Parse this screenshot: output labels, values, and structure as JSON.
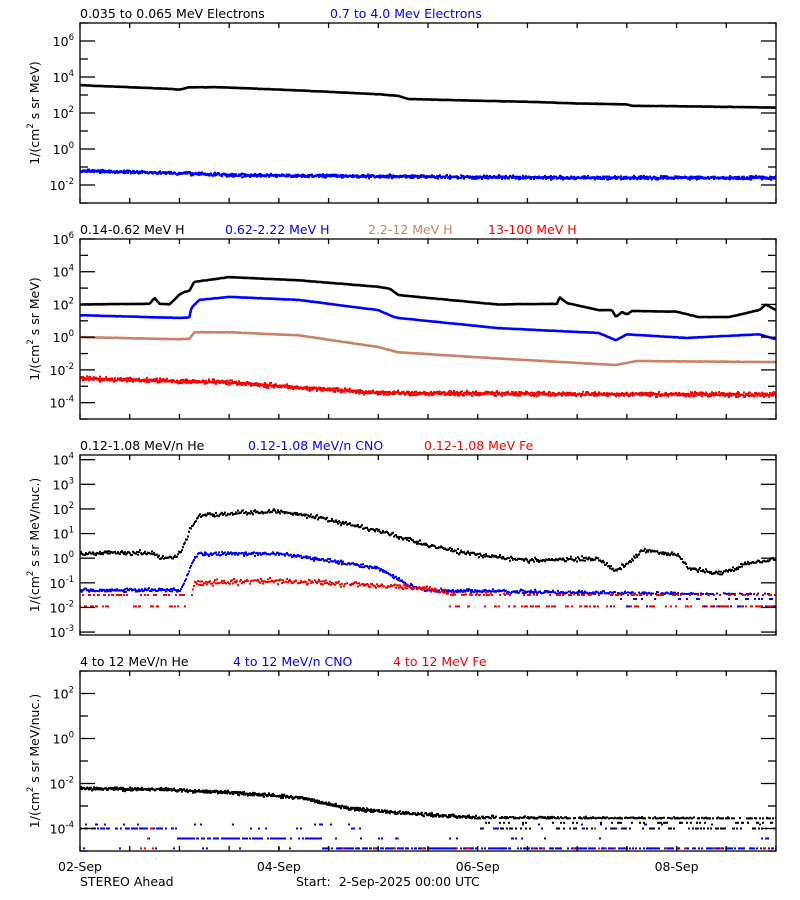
{
  "chart_data": [
    {
      "type": "scatter",
      "xlim": [
        "2025-09-02 00:00",
        "2025-09-09 00:00"
      ],
      "ylim": [
        0.001,
        10000000
      ],
      "yscale": "log",
      "ylabel": {
        "pre": "1/(cm",
        "sup": "2",
        "post": " s sr MeV)"
      },
      "ytick_labels": [
        "10^6",
        "10^4",
        "10^2",
        "10^0",
        "10^-2"
      ],
      "grid": false,
      "series": [
        {
          "name": "0.035 to 0.065 MeV Electrons",
          "color": "#000000",
          "style": "line",
          "points": [
            [
              "2025-09-02 00:00",
              3500
            ],
            [
              "2025-09-02 21:36",
              2200
            ],
            [
              "2025-09-03 00:00",
              2000
            ],
            [
              "2025-09-03 02:24",
              2700
            ],
            [
              "2025-09-03 09:36",
              2700
            ],
            [
              "2025-09-04 00:00",
              2000
            ],
            [
              "2025-09-04 12:00",
              1500
            ],
            [
              "2025-09-05 00:00",
              1100
            ],
            [
              "2025-09-05 04:48",
              900
            ],
            [
              "2025-09-05 07:12",
              600
            ],
            [
              "2025-09-06 00:00",
              480
            ],
            [
              "2025-09-06 12:00",
              420
            ],
            [
              "2025-09-07 00:00",
              340
            ],
            [
              "2025-09-07 12:00",
              300
            ],
            [
              "2025-09-07 13:12",
              250
            ],
            [
              "2025-09-08 00:00",
              240
            ],
            [
              "2025-09-09 00:00",
              200
            ]
          ]
        },
        {
          "name": "0.7 to 4.0 Mev Electrons",
          "color": "#0000ff",
          "style": "points",
          "points": [
            [
              "2025-09-02 00:00",
              0.06
            ],
            [
              "2025-09-03 00:00",
              0.045
            ],
            [
              "2025-09-03 12:00",
              0.035
            ],
            [
              "2025-09-05 00:00",
              0.03
            ],
            [
              "2025-09-07 00:00",
              0.025
            ],
            [
              "2025-09-09 00:00",
              0.025
            ]
          ]
        }
      ]
    },
    {
      "type": "scatter",
      "xlim": [
        "2025-09-02 00:00",
        "2025-09-09 00:00"
      ],
      "ylim": [
        1e-05,
        1000000
      ],
      "yscale": "log",
      "ylabel": {
        "pre": "1/(cm",
        "sup": "2",
        "post": " s sr MeV)"
      },
      "ytick_labels": [
        "10^6",
        "10^4",
        "10^2",
        "10^0",
        "10^-2",
        "10^-4"
      ],
      "grid": false,
      "series": [
        {
          "name": "0.14-0.62 MeV H",
          "color": "#000000",
          "style": "line",
          "points": [
            [
              "2025-09-02 00:00",
              100
            ],
            [
              "2025-09-02 16:48",
              110
            ],
            [
              "2025-09-02 18:00",
              250
            ],
            [
              "2025-09-02 19:12",
              110
            ],
            [
              "2025-09-02 21:36",
              100
            ],
            [
              "2025-09-03 00:00",
              400
            ],
            [
              "2025-09-03 01:12",
              580
            ],
            [
              "2025-09-03 02:24",
              700
            ],
            [
              "2025-09-03 03:36",
              2400
            ],
            [
              "2025-09-03 12:00",
              4700
            ],
            [
              "2025-09-04 04:48",
              3000
            ],
            [
              "2025-09-05 00:00",
              1200
            ],
            [
              "2025-09-05 02:52",
              900
            ],
            [
              "2025-09-05 04:48",
              380
            ],
            [
              "2025-09-05 12:00",
              250
            ],
            [
              "2025-09-06 04:48",
              100
            ],
            [
              "2025-09-06 19:12",
              110
            ],
            [
              "2025-09-06 19:41",
              280
            ],
            [
              "2025-09-06 21:36",
              120
            ],
            [
              "2025-09-07 05:17",
              45
            ],
            [
              "2025-09-07 08:24",
              45
            ],
            [
              "2025-09-07 09:22",
              17
            ],
            [
              "2025-09-07 10:48",
              35
            ],
            [
              "2025-09-07 12:00",
              25
            ],
            [
              "2025-09-07 13:12",
              40
            ],
            [
              "2025-09-08 00:00",
              36
            ],
            [
              "2025-09-08 05:17",
              17
            ],
            [
              "2025-09-08 12:43",
              17
            ],
            [
              "2025-09-08 19:55",
              45
            ],
            [
              "2025-09-08 21:36",
              100
            ],
            [
              "2025-09-09 00:00",
              45
            ]
          ]
        },
        {
          "name": "0.62-2.22 MeV H",
          "color": "#0000ff",
          "style": "line",
          "points": [
            [
              "2025-09-02 00:00",
              22
            ],
            [
              "2025-09-03 00:00",
              15
            ],
            [
              "2025-09-03 02:24",
              16
            ],
            [
              "2025-09-03 02:52",
              60
            ],
            [
              "2025-09-03 04:48",
              190
            ],
            [
              "2025-09-03 12:00",
              290
            ],
            [
              "2025-09-04 04:48",
              190
            ],
            [
              "2025-09-05 00:00",
              45
            ],
            [
              "2025-09-05 03:50",
              17
            ],
            [
              "2025-09-05 04:48",
              15
            ],
            [
              "2025-09-06 04:48",
              3.6
            ],
            [
              "2025-09-07 05:17",
              1.8
            ],
            [
              "2025-09-07 09:22",
              0.65
            ],
            [
              "2025-09-07 12:00",
              1.5
            ],
            [
              "2025-09-08 02:24",
              0.9
            ],
            [
              "2025-09-08 19:55",
              1.5
            ],
            [
              "2025-09-09 00:00",
              0.75
            ]
          ]
        },
        {
          "name": "2.2-12 MeV H",
          "color": "#c98268",
          "style": "line",
          "points": [
            [
              "2025-09-02 00:00",
              1.0
            ],
            [
              "2025-09-03 00:00",
              0.75
            ],
            [
              "2025-09-03 02:24",
              0.8
            ],
            [
              "2025-09-03 03:36",
              2
            ],
            [
              "2025-09-03 12:00",
              2
            ],
            [
              "2025-09-04 04:48",
              1.3
            ],
            [
              "2025-09-05 00:00",
              0.25
            ],
            [
              "2025-09-05 04:48",
              0.12
            ],
            [
              "2025-09-06 04:48",
              0.05
            ],
            [
              "2025-09-07 09:22",
              0.02
            ],
            [
              "2025-09-07 14:24",
              0.035
            ],
            [
              "2025-09-09 00:00",
              0.03
            ]
          ]
        },
        {
          "name": "13-100 MeV H",
          "color": "#ff0000",
          "style": "points",
          "floor_levels": [
            0.0001,
            5e-05
          ],
          "points": [
            [
              "2025-09-02 00:00",
              0.003
            ],
            [
              "2025-09-03 12:00",
              0.0017
            ],
            [
              "2025-09-04 04:48",
              0.00085
            ],
            [
              "2025-09-05 00:00",
              0.0004
            ],
            [
              "2025-09-06 04:48",
              0.00035
            ],
            [
              "2025-09-09 00:00",
              0.0003
            ]
          ]
        }
      ]
    },
    {
      "type": "scatter",
      "xlim": [
        "2025-09-02 00:00",
        "2025-09-09 00:00"
      ],
      "ylim": [
        0.00076,
        15500
      ],
      "yscale": "log",
      "ylabel": {
        "pre": "1/(cm",
        "sup": "2",
        "post": " s sr MeV/nuc.)"
      },
      "ytick_labels": [
        "10^4",
        "10^3",
        "10^2",
        "10^1",
        "10^0",
        "10^-1",
        "10^-2",
        "10^-3"
      ],
      "grid": false,
      "series": [
        {
          "name": "0.12-1.08 MeV/n He",
          "color": "#000000",
          "style": "points",
          "points": [
            [
              "2025-09-02 00:00",
              1.5
            ],
            [
              "2025-09-02 18:00",
              1.7
            ],
            [
              "2025-09-02 19:12",
              1.0
            ],
            [
              "2025-09-02 22:48",
              1.0
            ],
            [
              "2025-09-03 01:12",
              3.3
            ],
            [
              "2025-09-03 02:24",
              13
            ],
            [
              "2025-09-03 04:48",
              55
            ],
            [
              "2025-09-03 16:48",
              70
            ],
            [
              "2025-09-04 00:00",
              80
            ],
            [
              "2025-09-04 12:00",
              38
            ],
            [
              "2025-09-05 04:48",
              8
            ],
            [
              "2025-09-05 12:00",
              3.3
            ],
            [
              "2025-09-05 21:36",
              1.6
            ],
            [
              "2025-09-06 04:48",
              1.1
            ],
            [
              "2025-09-06 14:24",
              0.8
            ],
            [
              "2025-09-07 04:48",
              1.0
            ],
            [
              "2025-09-07 09:22",
              0.3
            ],
            [
              "2025-09-07 12:29",
              0.7
            ],
            [
              "2025-09-07 16:05",
              2.2
            ],
            [
              "2025-09-08 00:29",
              1.3
            ],
            [
              "2025-09-08 02:53",
              0.4
            ],
            [
              "2025-09-08 10:19",
              0.24
            ],
            [
              "2025-09-08 17:31",
              0.6
            ],
            [
              "2025-09-09 00:00",
              1.0
            ]
          ]
        },
        {
          "name": "0.12-1.08 MeV/n CNO",
          "color": "#0000ff",
          "style": "points",
          "floor_levels": [
            0.035,
            0.022,
            0.011
          ],
          "points": [
            [
              "2025-09-02 00:00",
              0.05
            ],
            [
              "2025-09-03 00:00",
              0.05
            ],
            [
              "2025-09-03 01:12",
              0.1
            ],
            [
              "2025-09-03 03:36",
              1.0
            ],
            [
              "2025-09-03 04:48",
              1.5
            ],
            [
              "2025-09-04 00:00",
              1.5
            ],
            [
              "2025-09-04 12:00",
              0.8
            ],
            [
              "2025-09-05 00:00",
              0.4
            ],
            [
              "2025-09-05 03:50",
              0.17
            ],
            [
              "2025-09-05 07:12",
              0.08
            ],
            [
              "2025-09-05 12:00",
              0.05
            ],
            [
              "2025-09-09 00:00",
              0.03
            ]
          ]
        },
        {
          "name": "0.12-1.08 MeV Fe",
          "color": "#ff0000",
          "style": "points",
          "floor_levels": [
            0.032,
            0.011
          ],
          "points": [
            [
              "2025-09-02 00:00",
              0.006
            ],
            [
              "2025-09-03 02:24",
              0.006
            ],
            [
              "2025-09-03 03:36",
              0.1
            ],
            [
              "2025-09-04 00:00",
              0.12
            ],
            [
              "2025-09-05 12:00",
              0.06
            ],
            [
              "2025-09-05 19:12",
              0.03
            ],
            [
              "2025-09-09 00:00",
              0.02
            ]
          ]
        }
      ]
    },
    {
      "type": "scatter",
      "xlim": [
        "2025-09-02 00:00",
        "2025-09-09 00:00"
      ],
      "ylim": [
        1e-05,
        1000
      ],
      "yscale": "log",
      "ylabel": {
        "pre": "1/(cm",
        "sup": "2",
        "post": " s sr MeV/nuc.)"
      },
      "ytick_labels": [
        "10^2",
        "10^0",
        "10^-2",
        "10^-4"
      ],
      "xtick_labels": [
        "02-Sep",
        "04-Sep",
        "06-Sep",
        "08-Sep"
      ],
      "grid": false,
      "series": [
        {
          "name": "4 to 12 MeV/n He",
          "color": "#000000",
          "style": "points",
          "floor_levels": [
            0.00028,
            0.00018,
            0.0001
          ],
          "points": [
            [
              "2025-09-02 00:00",
              0.006
            ],
            [
              "2025-09-02 18:00",
              0.0055
            ],
            [
              "2025-09-03 12:00",
              0.004
            ],
            [
              "2025-09-04 04:48",
              0.0024
            ],
            [
              "2025-09-04 16:48",
              0.0008
            ],
            [
              "2025-09-05 04:48",
              0.0005
            ],
            [
              "2025-09-06 00:00",
              0.0003
            ],
            [
              "2025-09-09 00:00",
              0.00025
            ]
          ]
        },
        {
          "name": "4 to 12 MeV/n CNO",
          "color": "#0000ff",
          "style": "points",
          "quantized": true,
          "floor_levels": [
            0.00015,
            0.0001,
            3.6e-05,
            1.3e-05
          ],
          "points": [
            [
              "2025-09-02 00:00",
              0.00012
            ],
            [
              "2025-09-05 12:00",
              1e-05
            ],
            [
              "2025-09-09 00:00",
              8e-06
            ]
          ]
        },
        {
          "name": "4 to 12 MeV Fe",
          "color": "#ff0000",
          "style": "points",
          "quantized": true,
          "floor_levels": [
            0.0001,
            3.6e-05,
            1.3e-05
          ],
          "points": [
            [
              "2025-09-02 00:00",
              2e-05
            ],
            [
              "2025-09-09 00:00",
              1e-05
            ]
          ]
        }
      ]
    }
  ],
  "footer": {
    "spacecraft": "STEREO Ahead",
    "start": "Start:  2-Sep-2025 00:00 UTC"
  }
}
